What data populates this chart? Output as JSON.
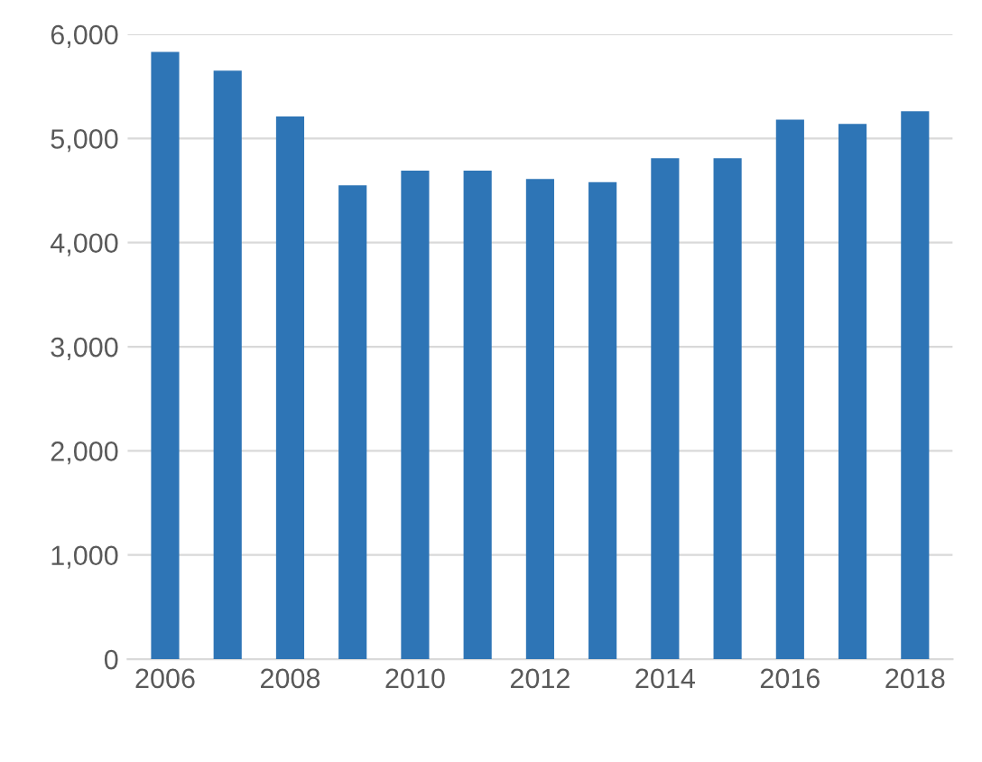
{
  "chart_data": {
    "type": "bar",
    "categories": [
      "2006",
      null,
      "2008",
      null,
      "2010",
      null,
      "2012",
      null,
      "2014",
      null,
      "2016",
      null,
      "2018"
    ],
    "values": [
      5830,
      5650,
      5210,
      4550,
      4690,
      4690,
      4610,
      4580,
      4810,
      4810,
      5180,
      5140,
      5260
    ],
    "color": "#2e75b6",
    "ylim": [
      0,
      6000
    ],
    "yticks": [
      {
        "value": 0,
        "label": "0"
      },
      {
        "value": 1000,
        "label": "1,000"
      },
      {
        "value": 2000,
        "label": "2,000"
      },
      {
        "value": 3000,
        "label": "3,000"
      },
      {
        "value": 4000,
        "label": "4,000"
      },
      {
        "value": 5000,
        "label": "5,000"
      },
      {
        "value": 6000,
        "label": "6,000"
      }
    ],
    "grid": "y"
  }
}
